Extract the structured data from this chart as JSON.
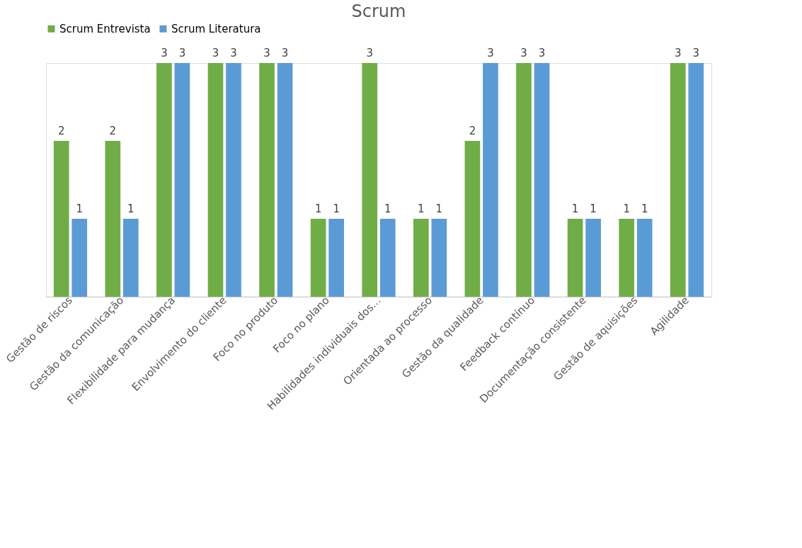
{
  "chart_data": {
    "type": "bar",
    "title": "Scrum",
    "categories": [
      "Gestão de riscos",
      "Gestão da comunicação",
      "Flexibilidade para mudança",
      "Envolvimento do cliente",
      "Foco no produto",
      "Foco no plano",
      "Habilidades individuais dos...",
      "Orientada ao processo",
      "Gestão da qualidade",
      "Feedback contínuo",
      "Documentação consistente",
      "Gestão de aquisições",
      "Agilidade"
    ],
    "series": [
      {
        "name": "Scrum Entrevista",
        "color": "#70ad47",
        "values": [
          2,
          2,
          3,
          3,
          3,
          1,
          3,
          1,
          2,
          3,
          1,
          1,
          3
        ]
      },
      {
        "name": "Scrum Literatura",
        "color": "#5b9bd5",
        "values": [
          1,
          1,
          3,
          3,
          3,
          1,
          1,
          1,
          3,
          3,
          1,
          1,
          3
        ]
      }
    ],
    "data_labels": true,
    "legend": "top",
    "grid": false
  }
}
